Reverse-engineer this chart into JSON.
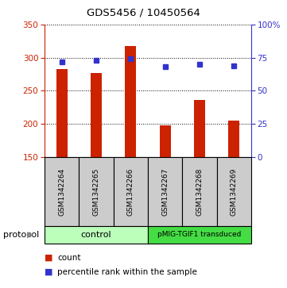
{
  "title": "GDS5456 / 10450564",
  "samples": [
    "GSM1342264",
    "GSM1342265",
    "GSM1342266",
    "GSM1342267",
    "GSM1342268",
    "GSM1342269"
  ],
  "counts": [
    283,
    277,
    318,
    198,
    236,
    205
  ],
  "percentile_ranks": [
    72,
    73,
    74,
    68,
    70,
    69
  ],
  "ylim_left": [
    150,
    350
  ],
  "ylim_right": [
    0,
    100
  ],
  "yticks_left": [
    150,
    200,
    250,
    300,
    350
  ],
  "yticks_right": [
    0,
    25,
    50,
    75,
    100
  ],
  "bar_color": "#cc2200",
  "dot_color": "#3333cc",
  "grid_color": "#888888",
  "bg_label": "#cccccc",
  "control_color": "#bbffbb",
  "transduced_color": "#44dd44",
  "control_label": "control",
  "transduced_label": "pMIG-TGIF1 transduced",
  "legend_count_label": "count",
  "legend_pct_label": "percentile rank within the sample",
  "protocol_label": "protocol",
  "bar_width": 0.32
}
